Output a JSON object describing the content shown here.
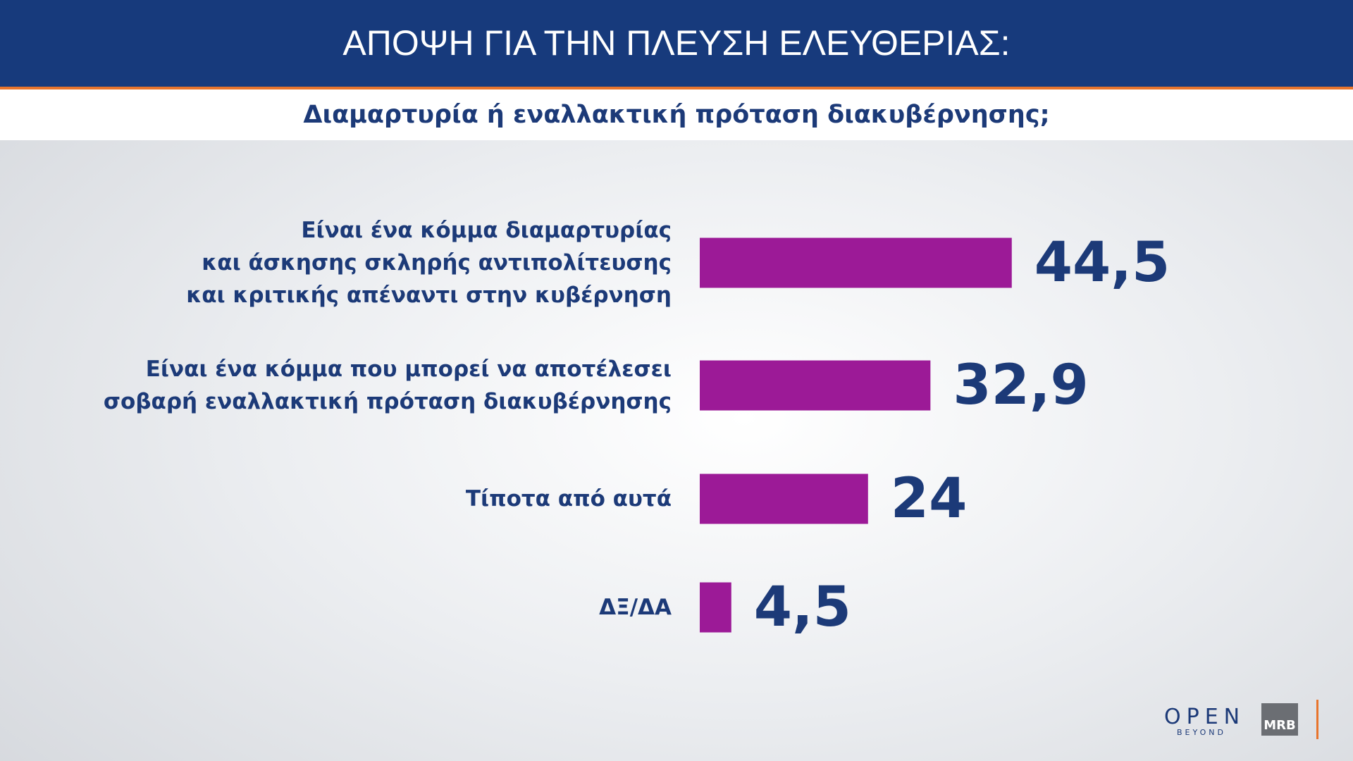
{
  "chart_data": {
    "type": "bar",
    "orientation": "horizontal",
    "title": "ΑΠΟΨΗ ΓΙΑ ΤΗΝ ΠΛΕΥΣΗ ΕΛΕΥΘΕΡΙΑΣ:",
    "subtitle": "Διαμαρτυρία ή εναλλακτική πρόταση διακυβέρνησης;",
    "categories": [
      "Είναι ένα κόμμα διαμαρτυρίας\nκαι άσκησης σκληρής αντιπολίτευσης\nκαι κριτικής απέναντι στην κυβέρνηση",
      "Είναι ένα κόμμα που μπορεί να αποτέλεσει\nσοβαρή εναλλακτική πρόταση διακυβέρνησης",
      "Τίποτα από αυτά",
      "ΔΞ/ΔΑ"
    ],
    "values": [
      44.5,
      32.9,
      24,
      4.5
    ],
    "value_labels": [
      "44,5",
      "32,9",
      "24",
      "4,5"
    ],
    "color": "#9c1a97"
  },
  "logos": {
    "open": "OPEN",
    "beyond": "BEYOND",
    "mrb": "MRB"
  }
}
